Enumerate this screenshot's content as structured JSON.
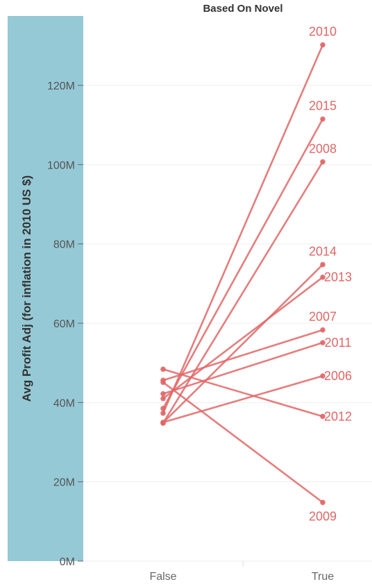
{
  "chart_data": {
    "type": "line",
    "title": "Based On Novel",
    "xlabel": "",
    "ylabel": "Avg Profit Adj (for inflation in 2010 US $)",
    "categories": [
      "False",
      "True"
    ],
    "ylim": [
      0,
      137500000
    ],
    "yticks": [
      {
        "value": 0,
        "label": "0M"
      },
      {
        "value": 20000000,
        "label": "20M"
      },
      {
        "value": 40000000,
        "label": "40M"
      },
      {
        "value": 60000000,
        "label": "60M"
      },
      {
        "value": 80000000,
        "label": "80M"
      },
      {
        "value": 100000000,
        "label": "100M"
      },
      {
        "value": 120000000,
        "label": "120M"
      }
    ],
    "grid": true,
    "series": [
      {
        "name": "2010",
        "values": [
          37300000,
          130200000
        ]
      },
      {
        "name": "2015",
        "values": [
          38500000,
          111500000
        ]
      },
      {
        "name": "2008",
        "values": [
          34800000,
          100700000
        ]
      },
      {
        "name": "2014",
        "values": [
          34900000,
          74800000
        ]
      },
      {
        "name": "2013",
        "values": [
          41000000,
          71600000
        ]
      },
      {
        "name": "2007",
        "values": [
          45600000,
          58300000
        ]
      },
      {
        "name": "2011",
        "values": [
          42200000,
          55100000
        ]
      },
      {
        "name": "2006",
        "values": [
          35000000,
          46700000
        ]
      },
      {
        "name": "2012",
        "values": [
          48400000,
          36500000
        ]
      },
      {
        "name": "2009",
        "values": [
          45100000,
          14800000
        ]
      }
    ]
  },
  "colors": {
    "line": "#e06666",
    "label": "#e06666",
    "axis_band": "#95c9d6",
    "grid": "#eeeeee"
  }
}
